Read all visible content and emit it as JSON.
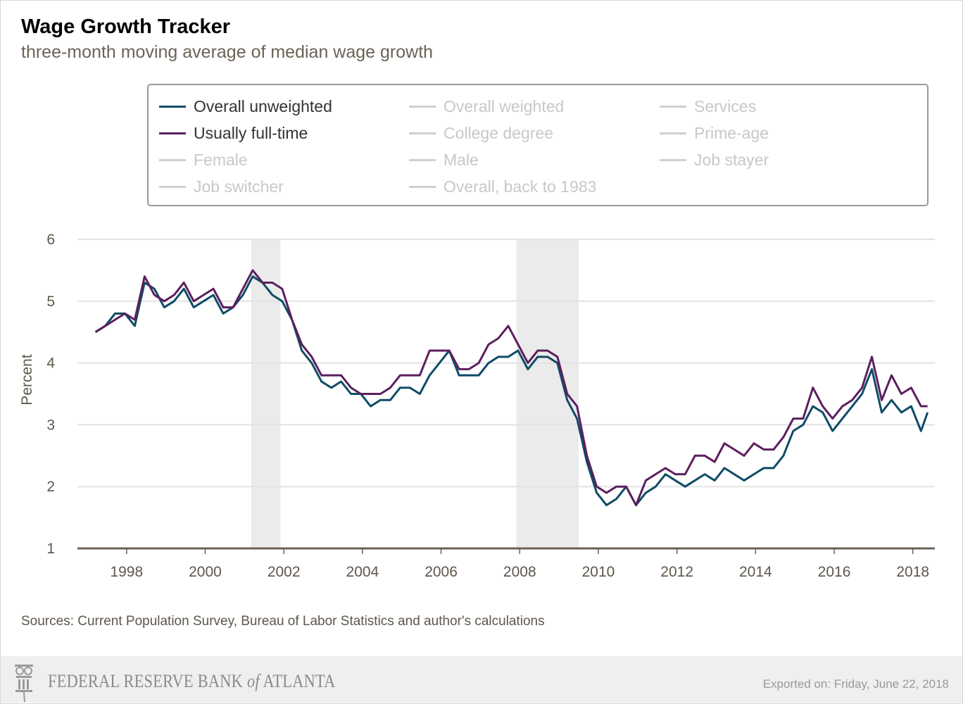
{
  "title": "Wage Growth Tracker",
  "subtitle": "three-month moving average of median wage growth",
  "legend": [
    {
      "label": "Overall unweighted",
      "active": true,
      "color": "#0f4c66"
    },
    {
      "label": "Overall weighted",
      "active": false
    },
    {
      "label": "Services",
      "active": false
    },
    {
      "label": "Usually full-time",
      "active": true,
      "color": "#5c1f5e"
    },
    {
      "label": "College degree",
      "active": false
    },
    {
      "label": "Prime-age",
      "active": false
    },
    {
      "label": "Female",
      "active": false
    },
    {
      "label": "Male",
      "active": false
    },
    {
      "label": "Job stayer",
      "active": false
    },
    {
      "label": "Job switcher",
      "active": false
    },
    {
      "label": "Overall, back to 1983",
      "active": false
    }
  ],
  "chart_data": {
    "type": "line",
    "title": "Wage Growth Tracker",
    "subtitle": "three-month moving average of median wage growth",
    "ylabel": "Percent",
    "xlabel": "",
    "ylim": [
      1,
      6
    ],
    "yticks": [
      "1",
      "2",
      "3",
      "4",
      "5",
      "6"
    ],
    "xticks": [
      "1998",
      "2000",
      "2002",
      "2004",
      "2006",
      "2008",
      "2010",
      "2012",
      "2014",
      "2016",
      "2018"
    ],
    "grid": true,
    "recessions": [
      [
        "2001-03",
        "2001-11"
      ],
      [
        "2007-12",
        "2009-06"
      ]
    ],
    "x": [
      "1997-03",
      "1997-06",
      "1997-09",
      "1997-12",
      "1998-03",
      "1998-06",
      "1998-09",
      "1998-12",
      "1999-03",
      "1999-06",
      "1999-09",
      "1999-12",
      "2000-03",
      "2000-06",
      "2000-09",
      "2000-12",
      "2001-03",
      "2001-06",
      "2001-09",
      "2001-12",
      "2002-03",
      "2002-06",
      "2002-09",
      "2002-12",
      "2003-03",
      "2003-06",
      "2003-09",
      "2003-12",
      "2004-03",
      "2004-06",
      "2004-09",
      "2004-12",
      "2005-03",
      "2005-06",
      "2005-09",
      "2005-12",
      "2006-03",
      "2006-06",
      "2006-09",
      "2006-12",
      "2007-03",
      "2007-06",
      "2007-09",
      "2007-12",
      "2008-03",
      "2008-06",
      "2008-09",
      "2008-12",
      "2009-03",
      "2009-06",
      "2009-09",
      "2009-12",
      "2010-03",
      "2010-06",
      "2010-09",
      "2010-12",
      "2011-03",
      "2011-06",
      "2011-09",
      "2011-12",
      "2012-03",
      "2012-06",
      "2012-09",
      "2012-12",
      "2013-03",
      "2013-06",
      "2013-09",
      "2013-12",
      "2014-03",
      "2014-06",
      "2014-09",
      "2014-12",
      "2015-03",
      "2015-06",
      "2015-09",
      "2015-12",
      "2016-03",
      "2016-06",
      "2016-09",
      "2016-12",
      "2017-03",
      "2017-06",
      "2017-09",
      "2017-12",
      "2018-03",
      "2018-05"
    ],
    "series": [
      {
        "name": "Overall unweighted",
        "color": "#0f4c66",
        "values": [
          4.5,
          4.6,
          4.8,
          4.8,
          4.6,
          5.3,
          5.2,
          4.9,
          5.0,
          5.2,
          4.9,
          5.0,
          5.1,
          4.8,
          4.9,
          5.1,
          5.4,
          5.3,
          5.1,
          5.0,
          4.7,
          4.2,
          4.0,
          3.7,
          3.6,
          3.7,
          3.5,
          3.5,
          3.3,
          3.4,
          3.4,
          3.6,
          3.6,
          3.5,
          3.8,
          4.0,
          4.2,
          3.8,
          3.8,
          3.8,
          4.0,
          4.1,
          4.1,
          4.2,
          3.9,
          4.1,
          4.1,
          4.0,
          3.4,
          3.1,
          2.4,
          1.9,
          1.7,
          1.8,
          2.0,
          1.7,
          1.9,
          2.0,
          2.2,
          2.1,
          2.0,
          2.1,
          2.2,
          2.1,
          2.3,
          2.2,
          2.1,
          2.2,
          2.3,
          2.3,
          2.5,
          2.9,
          3.0,
          3.3,
          3.2,
          2.9,
          3.1,
          3.3,
          3.5,
          3.9,
          3.2,
          3.4,
          3.2,
          3.3,
          2.9,
          3.2
        ]
      },
      {
        "name": "Usually full-time",
        "color": "#5c1f5e",
        "values": [
          4.5,
          4.6,
          4.7,
          4.8,
          4.7,
          5.4,
          5.1,
          5.0,
          5.1,
          5.3,
          5.0,
          5.1,
          5.2,
          4.9,
          4.9,
          5.2,
          5.5,
          5.3,
          5.3,
          5.2,
          4.7,
          4.3,
          4.1,
          3.8,
          3.8,
          3.8,
          3.6,
          3.5,
          3.5,
          3.5,
          3.6,
          3.8,
          3.8,
          3.8,
          4.2,
          4.2,
          4.2,
          3.9,
          3.9,
          4.0,
          4.3,
          4.4,
          4.6,
          4.3,
          4.0,
          4.2,
          4.2,
          4.1,
          3.5,
          3.3,
          2.5,
          2.0,
          1.9,
          2.0,
          2.0,
          1.7,
          2.1,
          2.2,
          2.3,
          2.2,
          2.2,
          2.5,
          2.5,
          2.4,
          2.7,
          2.6,
          2.5,
          2.7,
          2.6,
          2.6,
          2.8,
          3.1,
          3.1,
          3.6,
          3.3,
          3.1,
          3.3,
          3.4,
          3.6,
          4.1,
          3.4,
          3.8,
          3.5,
          3.6,
          3.3,
          3.3
        ]
      }
    ]
  },
  "sources": "Sources: Current Population Survey, Bureau of Labor Statistics and author's calculations",
  "footer": {
    "logo_text": "FEDERAL RESERVE BANK of ATLANTA",
    "exported": "Exported on: Friday, June 22, 2018"
  }
}
